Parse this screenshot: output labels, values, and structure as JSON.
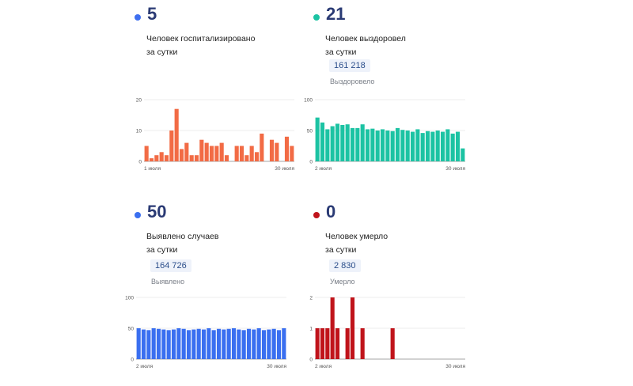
{
  "panels": {
    "hospitalized": {
      "value": "5",
      "desc_line1": "Человек госпитализировано",
      "desc_line2": "за сутки",
      "color": "#f26b45",
      "dot_color": "#3e6ff0"
    },
    "recovered": {
      "value": "21",
      "desc_line1": "Человек выздоровел",
      "desc_line2": "за сутки",
      "total": "161 218",
      "total_label": "Выздоровело",
      "color": "#1cc3a3",
      "dot_color": "#1cc3a3"
    },
    "cases": {
      "value": "50",
      "desc_line1": "Выявлено случаев",
      "desc_line2": "за сутки",
      "total": "164 726",
      "total_label": "Выявлено",
      "color": "#3a6ff0",
      "dot_color": "#3a6ff0"
    },
    "deaths": {
      "value": "0",
      "desc_line1": "Человек умерло",
      "desc_line2": "за сутки",
      "total": "2 830",
      "total_label": "Умерло",
      "color": "#c0141b",
      "dot_color": "#c0141b"
    }
  },
  "chart_data": [
    {
      "type": "bar",
      "ylim": [
        0,
        20
      ],
      "yticks": [
        "0",
        "10",
        "20"
      ],
      "xtick_start": "1 июля",
      "xtick_end": "30 июля",
      "values": [
        5,
        1,
        2,
        3,
        2,
        10,
        17,
        4,
        6,
        2,
        2,
        7,
        6,
        5,
        5,
        6,
        2,
        0,
        5,
        5,
        2,
        5,
        3,
        9,
        0,
        7,
        6,
        0,
        8,
        5
      ]
    },
    {
      "type": "bar",
      "ylim": [
        0,
        100
      ],
      "yticks": [
        "0",
        "50",
        "100"
      ],
      "xtick_start": "2 июля",
      "xtick_end": "30 июля",
      "values": [
        71,
        63,
        52,
        57,
        61,
        59,
        60,
        54,
        54,
        60,
        52,
        53,
        50,
        52,
        50,
        49,
        54,
        51,
        50,
        48,
        52,
        46,
        49,
        48,
        50,
        48,
        52,
        45,
        48,
        21
      ]
    },
    {
      "type": "bar",
      "ylim": [
        0,
        100
      ],
      "yticks": [
        "0",
        "50",
        "100"
      ],
      "xtick_start": "2 июля",
      "xtick_end": "30 июля",
      "values": [
        50,
        48,
        47,
        50,
        49,
        48,
        47,
        48,
        50,
        49,
        47,
        48,
        49,
        48,
        50,
        47,
        49,
        48,
        49,
        50,
        48,
        47,
        49,
        48,
        50,
        47,
        48,
        49,
        47,
        50
      ]
    },
    {
      "type": "bar",
      "ylim": [
        0,
        2
      ],
      "yticks": [
        "0",
        "1",
        "2"
      ],
      "xtick_start": "2 июля",
      "xtick_end": "30 июля",
      "values": [
        1,
        1,
        1,
        2,
        1,
        0,
        1,
        2,
        0,
        1,
        0,
        0,
        0,
        0,
        0,
        1,
        0,
        0,
        0,
        0,
        0,
        0,
        0,
        0,
        0,
        0,
        0,
        0,
        0,
        0
      ]
    }
  ]
}
